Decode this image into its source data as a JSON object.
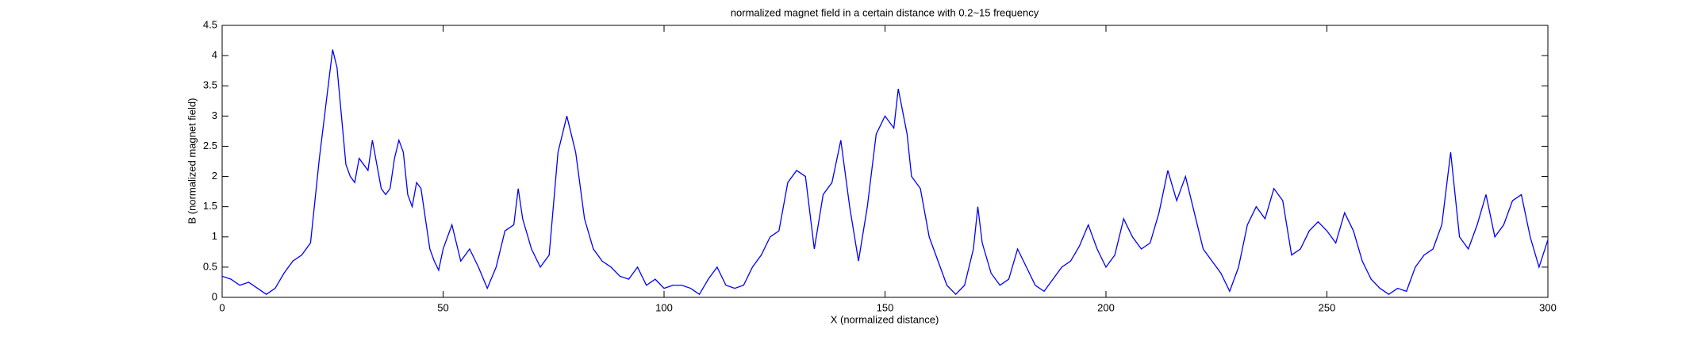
{
  "chart_data": {
    "type": "line",
    "title": "normalized magnet field in a certain distance with 0.2~15 frequency",
    "x_label": "X (normalized distance)",
    "y_label": "B (normalized magnet field)",
    "xlim": [
      0,
      300
    ],
    "xticks": [
      0,
      50,
      100,
      150,
      200,
      250,
      300
    ],
    "ylim": [
      0,
      4.5
    ],
    "yticks": [
      0,
      0.5,
      1,
      1.5,
      2,
      2.5,
      3,
      3.5,
      4,
      4.5
    ],
    "grid": false,
    "color": "#0000ff",
    "x": [
      0,
      2,
      4,
      6,
      8,
      10,
      12,
      14,
      16,
      18,
      20,
      22,
      24,
      25,
      26,
      27,
      28,
      29,
      30,
      31,
      32,
      33,
      34,
      35,
      36,
      37,
      38,
      39,
      40,
      41,
      42,
      43,
      44,
      45,
      46,
      47,
      48,
      49,
      50,
      52,
      54,
      56,
      58,
      60,
      62,
      64,
      66,
      67,
      68,
      70,
      72,
      74,
      76,
      78,
      80,
      82,
      84,
      86,
      88,
      90,
      92,
      94,
      96,
      98,
      100,
      102,
      104,
      106,
      108,
      110,
      112,
      114,
      116,
      118,
      120,
      122,
      124,
      126,
      128,
      130,
      132,
      134,
      136,
      138,
      140,
      142,
      144,
      146,
      148,
      150,
      152,
      153,
      155,
      156,
      158,
      160,
      162,
      164,
      166,
      168,
      170,
      171,
      172,
      174,
      176,
      178,
      180,
      182,
      184,
      186,
      188,
      190,
      192,
      194,
      196,
      198,
      200,
      202,
      204,
      206,
      208,
      210,
      212,
      214,
      216,
      218,
      220,
      222,
      224,
      226,
      228,
      230,
      232,
      234,
      236,
      238,
      240,
      242,
      244,
      246,
      248,
      250,
      252,
      254,
      256,
      258,
      260,
      262,
      264,
      266,
      268,
      270,
      272,
      274,
      276,
      278,
      280,
      282,
      284,
      286,
      288,
      290,
      292,
      294,
      296,
      298,
      300
    ],
    "values": [
      0.35,
      0.3,
      0.2,
      0.25,
      0.15,
      0.05,
      0.15,
      0.4,
      0.6,
      0.7,
      0.9,
      2.3,
      3.5,
      4.1,
      3.8,
      3.0,
      2.2,
      2.0,
      1.9,
      2.3,
      2.2,
      2.1,
      2.6,
      2.2,
      1.8,
      1.7,
      1.8,
      2.3,
      2.6,
      2.4,
      1.7,
      1.5,
      1.9,
      1.8,
      1.3,
      0.8,
      0.6,
      0.45,
      0.8,
      1.2,
      0.6,
      0.8,
      0.5,
      0.15,
      0.5,
      1.1,
      1.2,
      1.8,
      1.3,
      0.8,
      0.5,
      0.7,
      2.4,
      3.0,
      2.4,
      1.3,
      0.8,
      0.6,
      0.5,
      0.35,
      0.3,
      0.5,
      0.2,
      0.3,
      0.15,
      0.2,
      0.2,
      0.15,
      0.05,
      0.3,
      0.5,
      0.2,
      0.15,
      0.2,
      0.5,
      0.7,
      1.0,
      1.1,
      1.9,
      2.1,
      2.0,
      0.8,
      1.7,
      1.9,
      2.6,
      1.5,
      0.6,
      1.5,
      2.7,
      3.0,
      2.8,
      3.45,
      2.7,
      2.0,
      1.8,
      1.0,
      0.6,
      0.2,
      0.05,
      0.2,
      0.8,
      1.5,
      0.9,
      0.4,
      0.2,
      0.3,
      0.8,
      0.5,
      0.2,
      0.1,
      0.3,
      0.5,
      0.6,
      0.85,
      1.2,
      0.8,
      0.5,
      0.7,
      1.3,
      1.0,
      0.8,
      0.9,
      1.4,
      2.1,
      1.6,
      2.0,
      1.4,
      0.8,
      0.6,
      0.4,
      0.1,
      0.5,
      1.2,
      1.5,
      1.3,
      1.8,
      1.6,
      0.7,
      0.8,
      1.1,
      1.25,
      1.1,
      0.9,
      1.4,
      1.1,
      0.6,
      0.3,
      0.15,
      0.05,
      0.15,
      0.1,
      0.5,
      0.7,
      0.8,
      1.2,
      2.4,
      1.0,
      0.8,
      1.2,
      1.7,
      1.0,
      1.2,
      1.6,
      1.7,
      1.0,
      0.5,
      0.95
    ]
  }
}
